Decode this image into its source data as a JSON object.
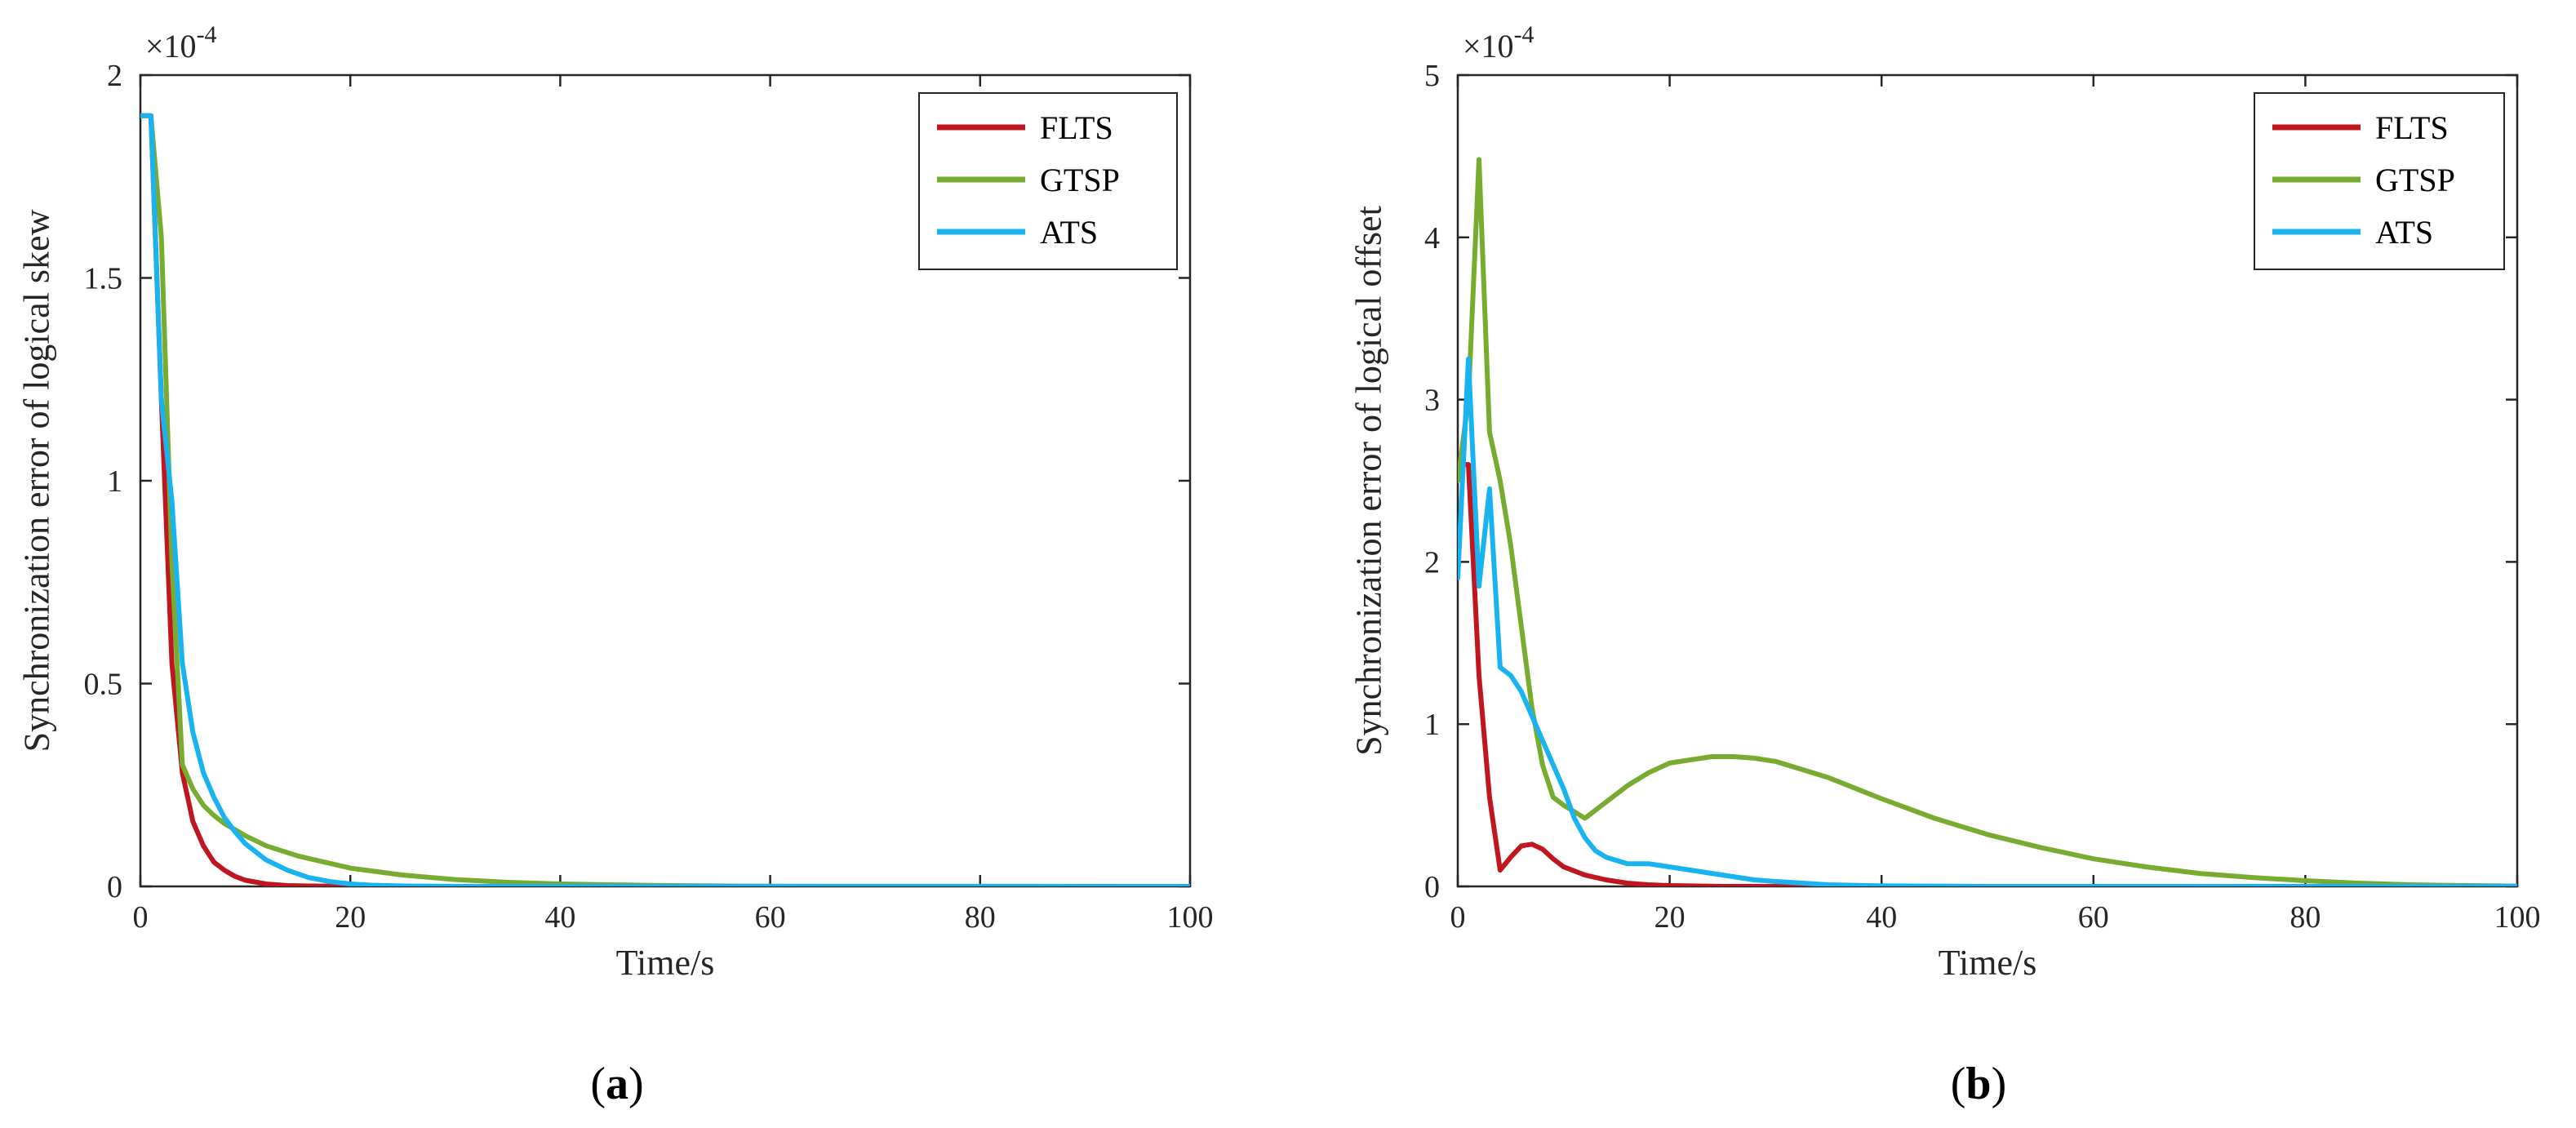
{
  "chart_data": [
    {
      "id": "a",
      "type": "line",
      "caption_open": "(",
      "caption_letter": "a",
      "caption_close": ")",
      "xlabel": "Time/s",
      "ylabel": "Synchronization error of logical skew",
      "xlim": [
        0,
        100
      ],
      "ylim": [
        0,
        2
      ],
      "xticks": [
        0,
        20,
        40,
        60,
        80,
        100
      ],
      "yticks": [
        0,
        0.5,
        1,
        1.5,
        2
      ],
      "xtick_labels": [
        "0",
        "20",
        "40",
        "60",
        "80",
        "100"
      ],
      "ytick_labels": [
        "0",
        "0.5",
        "1",
        "1.5",
        "2"
      ],
      "multiplier_base": "×10",
      "multiplier_exp": "-4",
      "legend_position": "top-right",
      "series": [
        {
          "name": "FLTS",
          "color": "#c0161f",
          "x": [
            0,
            1,
            2,
            3,
            4,
            5,
            6,
            7,
            8,
            9,
            10,
            12,
            14,
            16,
            20,
            30,
            100
          ],
          "y": [
            1.9,
            1.9,
            1.2,
            0.55,
            0.28,
            0.16,
            0.1,
            0.06,
            0.04,
            0.025,
            0.015,
            0.006,
            0.002,
            0.001,
            0,
            0,
            0
          ]
        },
        {
          "name": "GTSP",
          "color": "#77ac30",
          "x": [
            0,
            1,
            2,
            3,
            4,
            5,
            6,
            7,
            8,
            9,
            10,
            12,
            15,
            20,
            25,
            30,
            35,
            40,
            50,
            60,
            100
          ],
          "y": [
            1.9,
            1.9,
            1.6,
            0.8,
            0.3,
            0.24,
            0.2,
            0.175,
            0.155,
            0.14,
            0.125,
            0.1,
            0.075,
            0.045,
            0.028,
            0.017,
            0.01,
            0.006,
            0.002,
            0.0005,
            0
          ]
        },
        {
          "name": "ATS",
          "color": "#19b3ef",
          "x": [
            0,
            1,
            2,
            3,
            4,
            5,
            6,
            7,
            8,
            9,
            10,
            12,
            14,
            16,
            18,
            20,
            22,
            25,
            30,
            100
          ],
          "y": [
            1.9,
            1.9,
            1.2,
            0.95,
            0.55,
            0.38,
            0.28,
            0.22,
            0.17,
            0.135,
            0.105,
            0.065,
            0.04,
            0.022,
            0.012,
            0.006,
            0.003,
            0.001,
            0,
            0
          ]
        }
      ]
    },
    {
      "id": "b",
      "type": "line",
      "caption_open": "(",
      "caption_letter": "b",
      "caption_close": ")",
      "xlabel": "Time/s",
      "ylabel": "Synchronization error of logical offset",
      "xlim": [
        0,
        100
      ],
      "ylim": [
        0,
        5
      ],
      "xticks": [
        0,
        20,
        40,
        60,
        80,
        100
      ],
      "yticks": [
        0,
        1,
        2,
        3,
        4,
        5
      ],
      "xtick_labels": [
        "0",
        "20",
        "40",
        "60",
        "80",
        "100"
      ],
      "ytick_labels": [
        "0",
        "1",
        "2",
        "3",
        "4",
        "5"
      ],
      "multiplier_base": "×10",
      "multiplier_exp": "-4",
      "legend_position": "top-right",
      "series": [
        {
          "name": "FLTS",
          "color": "#c0161f",
          "x": [
            0,
            1,
            2,
            3,
            4,
            5,
            6,
            7,
            8,
            9,
            10,
            12,
            14,
            16,
            18,
            20,
            25,
            100
          ],
          "y": [
            2.6,
            2.6,
            1.3,
            0.55,
            0.1,
            0.18,
            0.25,
            0.26,
            0.23,
            0.17,
            0.12,
            0.07,
            0.04,
            0.02,
            0.01,
            0.005,
            0,
            0
          ]
        },
        {
          "name": "GTSP",
          "color": "#77ac30",
          "x": [
            0,
            1,
            2,
            3,
            4,
            5,
            6,
            7,
            8,
            9,
            10,
            12,
            14,
            16,
            18,
            20,
            22,
            24,
            26,
            28,
            30,
            35,
            40,
            45,
            50,
            55,
            60,
            65,
            70,
            75,
            80,
            85,
            90,
            95,
            100
          ],
          "y": [
            2.5,
            3.0,
            4.48,
            2.8,
            2.5,
            2.1,
            1.6,
            1.1,
            0.75,
            0.55,
            0.5,
            0.42,
            0.52,
            0.62,
            0.7,
            0.76,
            0.78,
            0.8,
            0.8,
            0.79,
            0.77,
            0.67,
            0.54,
            0.42,
            0.32,
            0.24,
            0.17,
            0.12,
            0.08,
            0.055,
            0.035,
            0.02,
            0.01,
            0.005,
            0.002
          ]
        },
        {
          "name": "ATS",
          "color": "#19b3ef",
          "x": [
            0,
            1,
            2,
            3,
            4,
            5,
            6,
            7,
            8,
            9,
            10,
            11,
            12,
            13,
            14,
            16,
            18,
            20,
            22,
            25,
            28,
            30,
            35,
            40,
            50,
            100
          ],
          "y": [
            1.9,
            3.25,
            1.85,
            2.45,
            1.35,
            1.3,
            1.2,
            1.05,
            0.9,
            0.75,
            0.6,
            0.42,
            0.3,
            0.22,
            0.18,
            0.14,
            0.14,
            0.12,
            0.1,
            0.07,
            0.04,
            0.03,
            0.01,
            0.003,
            0,
            0
          ]
        }
      ]
    }
  ]
}
